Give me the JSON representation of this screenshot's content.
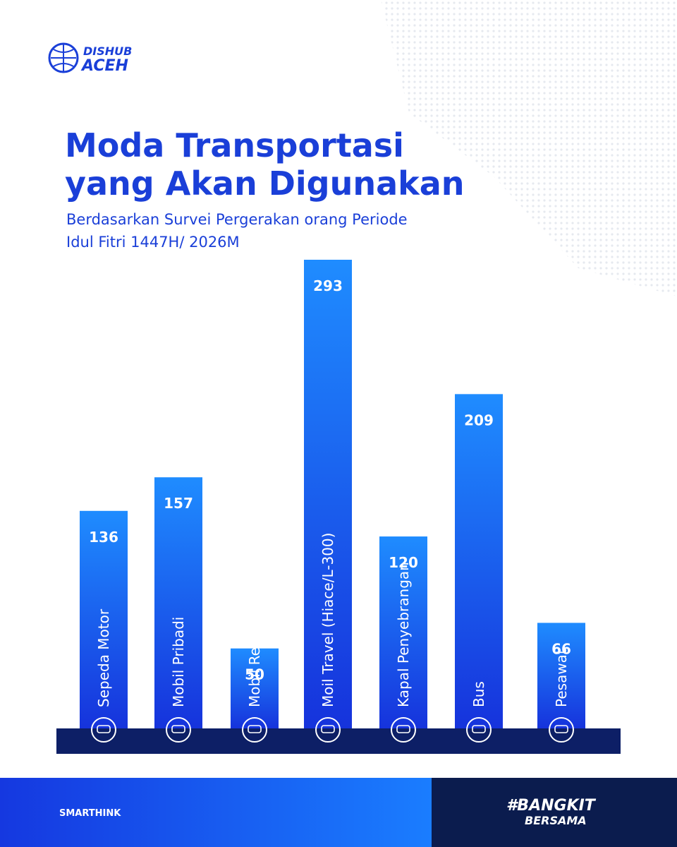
{
  "brand": {
    "line1": "DISHUB",
    "line2": "ACEH"
  },
  "chart_data": {
    "type": "bar",
    "title": [
      "Moda Transportasi",
      "yang Akan Digunakan"
    ],
    "subtitle": [
      "Berdasarkan Survei Pergerakan orang Periode",
      "Idul Fitri 1447H/ 2026M"
    ],
    "categories": [
      "Sepeda Motor",
      "Mobil Pribadi",
      "Mobil Rental",
      "Moil Travel (Hiace/L-300)",
      "Kapal Penyebrangan",
      "Bus",
      "Pesawat"
    ],
    "values": [
      136,
      157,
      50,
      293,
      120,
      209,
      66
    ],
    "color": "#1a5cf0"
  },
  "footer": {
    "left": "SMARTHINK",
    "right_line1": "#BANGKIT",
    "right_line2": "BERSAMA"
  }
}
